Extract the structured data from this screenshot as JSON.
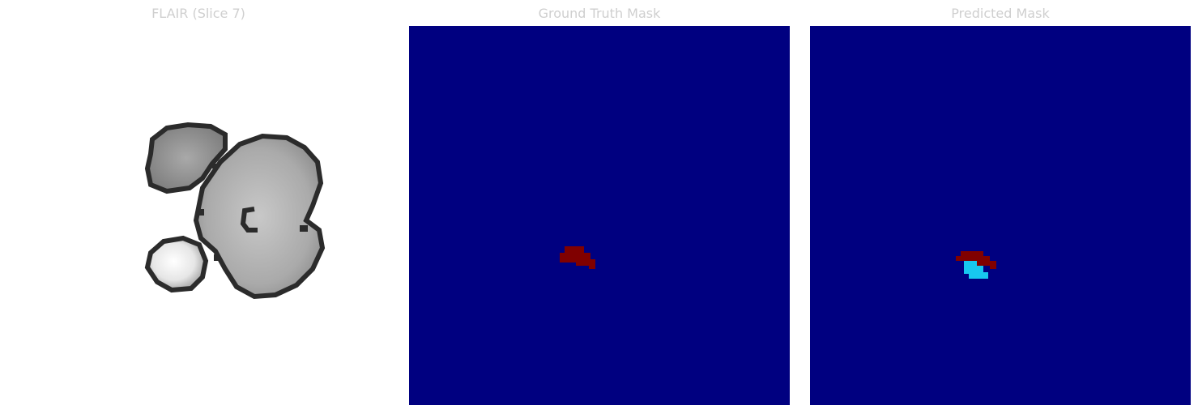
{
  "panels": [
    {
      "title": "FLAIR (Slice 7)"
    },
    {
      "title": "Ground Truth Mask"
    },
    {
      "title": "Predicted Mask"
    }
  ],
  "colors": {
    "background_mask": "#000080",
    "tumor_core": "#800000",
    "tumor_edema": "#17c7ef",
    "flair_background": "#ffffff",
    "brain_tissue": "#bdbdbd",
    "tissue_edge": "#2b2b2b",
    "hyperintense": "#f2f2f2"
  }
}
